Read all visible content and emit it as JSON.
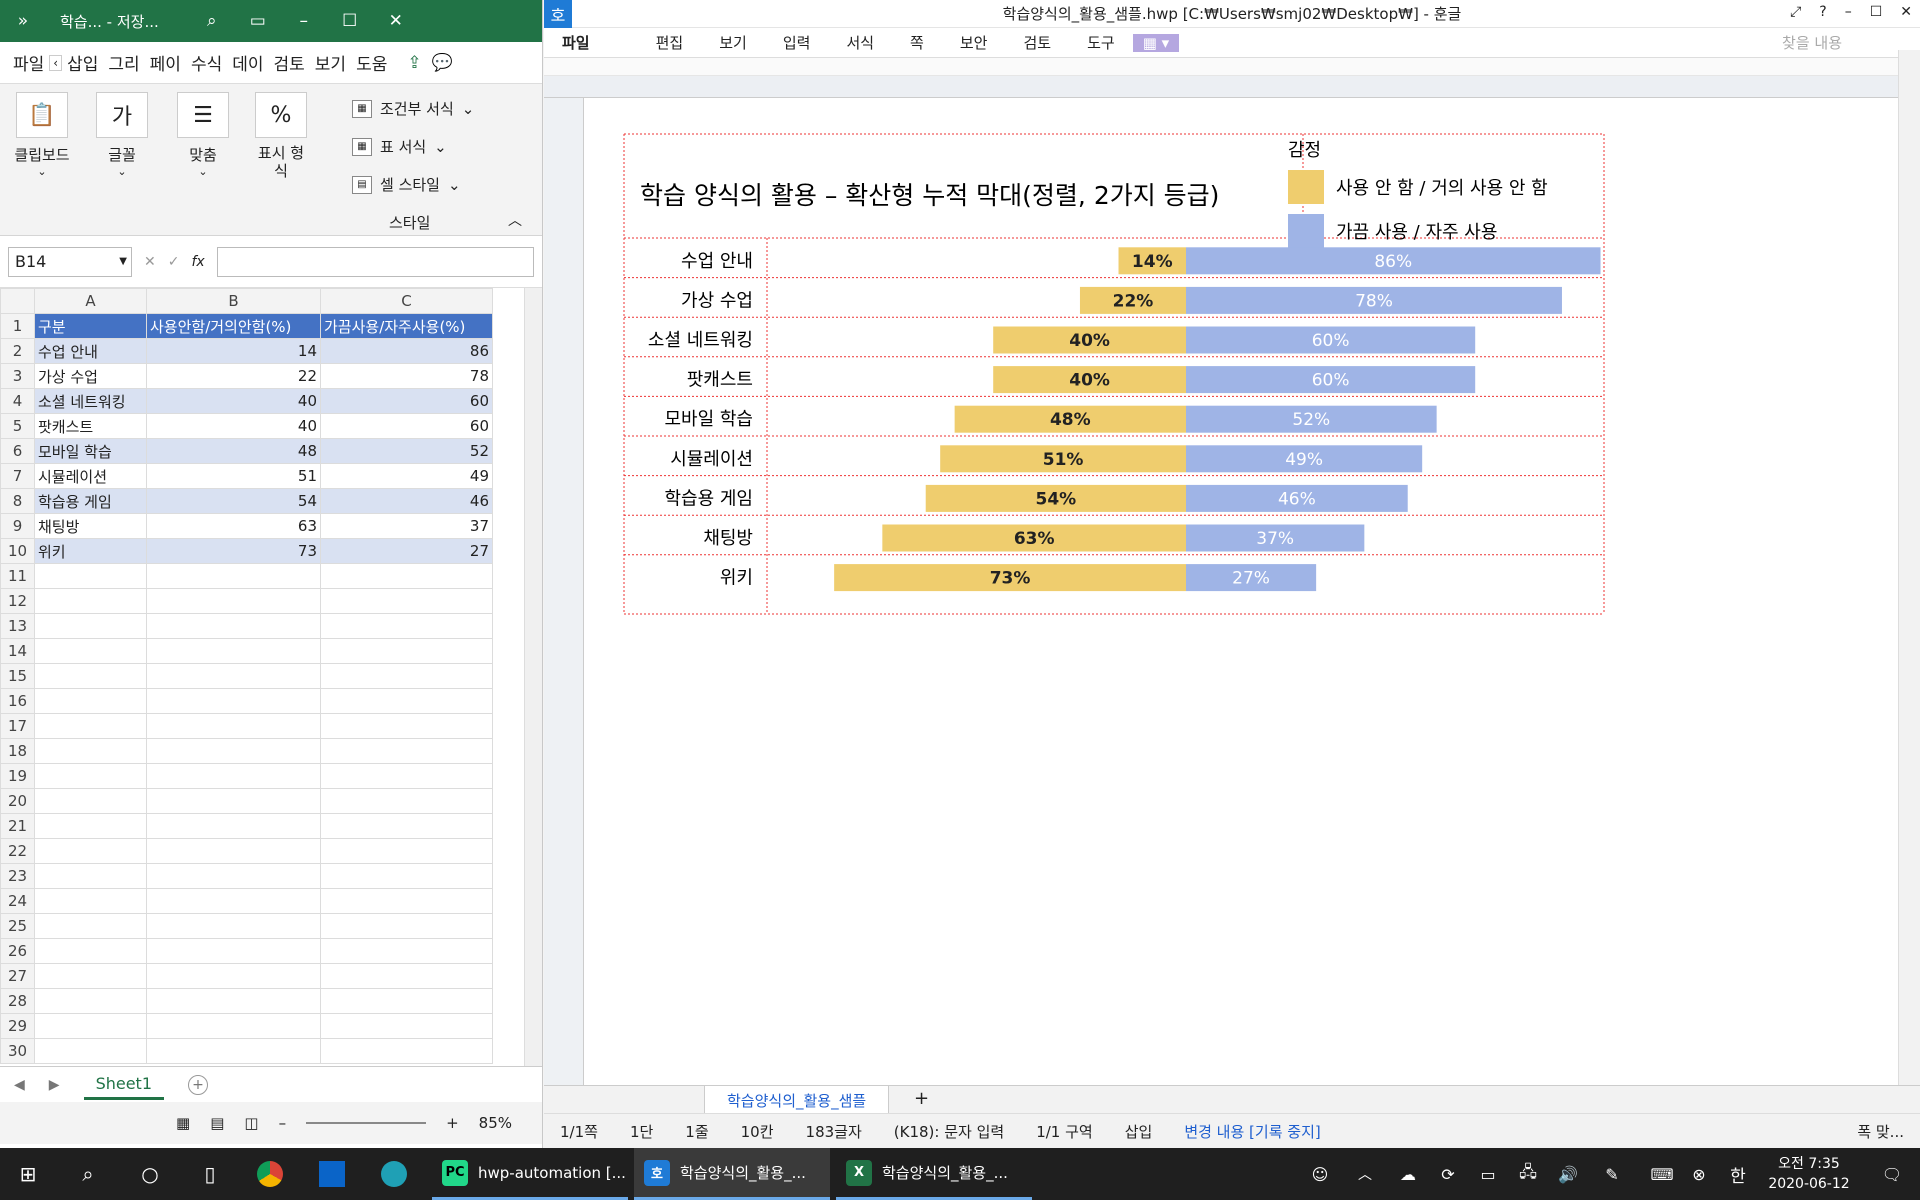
{
  "excel": {
    "title": "학습...  - 저장...",
    "tabs": [
      "파일",
      "삽입",
      "그리",
      "페이",
      "수식",
      "데이",
      "검토",
      "보기",
      "도움"
    ],
    "ribbon": {
      "clipboard": "클립보드",
      "font": "글꼴",
      "font_icon": "가",
      "align": "맞춤",
      "number": "표시 형식",
      "number_icon": "%",
      "conditional": "조건부 서식",
      "table_format": "표 서식",
      "cell_style": "셀 스타일",
      "group_style": "스타일"
    },
    "name_box": "B14",
    "fx_label": "fx",
    "columns": [
      "A",
      "B",
      "C"
    ],
    "headers": [
      "구분",
      "사용안함/거의안함(%)",
      "가끔사용/자주사용(%)"
    ],
    "rows": [
      {
        "a": "수업 안내",
        "b": "14",
        "c": "86"
      },
      {
        "a": "가상 수업",
        "b": "22",
        "c": "78"
      },
      {
        "a": "소셜 네트워킹",
        "b": "40",
        "c": "60"
      },
      {
        "a": "팟캐스트",
        "b": "40",
        "c": "60"
      },
      {
        "a": "모바일 학습",
        "b": "48",
        "c": "52"
      },
      {
        "a": "시뮬레이션",
        "b": "51",
        "c": "49"
      },
      {
        "a": "학습용 게임",
        "b": "54",
        "c": "46"
      },
      {
        "a": "채팅방",
        "b": "63",
        "c": "37"
      },
      {
        "a": "위키",
        "b": "73",
        "c": "27"
      }
    ],
    "row_numbers": [
      "1",
      "2",
      "3",
      "4",
      "5",
      "6",
      "7",
      "8",
      "9",
      "10",
      "11",
      "12",
      "13",
      "14",
      "15",
      "16",
      "17",
      "18",
      "19",
      "20",
      "21",
      "22",
      "23",
      "24",
      "25",
      "26",
      "27",
      "28",
      "29",
      "30"
    ],
    "sheet_tab": "Sheet1",
    "zoom": "85%"
  },
  "hwp": {
    "logo": "호",
    "title": "학습양식의_활용_샘플.hwp [C:₩Users₩smj02₩Desktop₩] - 훈글",
    "menu": [
      "파일",
      "편집",
      "보기",
      "입력",
      "서식",
      "쪽",
      "보안",
      "검토",
      "도구"
    ],
    "search_placeholder": "찾을 내용",
    "doc_tab": "학습양식의_활용_샘플",
    "status": [
      "1/1쪽",
      "1단",
      "1줄",
      "10칸",
      "183글자",
      "(K18): 문자 입력",
      "1/1 구역",
      "삽입"
    ],
    "status_track": "변경 내용 [기록 중지]",
    "fit_label": "폭 맞..."
  },
  "chart_data": {
    "type": "bar",
    "title": "학습 양식의 활용 – 확산형 누적 막대(정렬, 2가지 등급)",
    "legend_title": "감정",
    "categories": [
      "수업 안내",
      "가상 수업",
      "소셜 네트워킹",
      "팟캐스트",
      "모바일 학습",
      "시뮬레이션",
      "학습용 게임",
      "채팅방",
      "위키"
    ],
    "series": [
      {
        "name": "사용 안 함 / 거의 사용 안 함",
        "values": [
          14,
          22,
          40,
          40,
          48,
          51,
          54,
          63,
          73
        ],
        "color": "#efcd6e",
        "labels": [
          "14%",
          "22%",
          "40%",
          "40%",
          "48%",
          "51%",
          "54%",
          "63%",
          "73%"
        ]
      },
      {
        "name": "가끔 사용 / 자주 사용",
        "values": [
          86,
          78,
          60,
          60,
          52,
          49,
          46,
          37,
          27
        ],
        "color": "#9fb4e6",
        "labels": [
          "86%",
          "78%",
          "60%",
          "60%",
          "52%",
          "49%",
          "46%",
          "37%",
          "27%"
        ]
      }
    ],
    "stacking": "diverging",
    "legend_position": "top-right"
  },
  "taskbar": {
    "apps": [
      {
        "label": "hwp-automation [...",
        "icon": "PC"
      },
      {
        "label": "학습양식의_활용_...",
        "icon": "호"
      },
      {
        "label": "학습양식의_활용_...",
        "icon": "X"
      }
    ],
    "time": "오전 7:35",
    "date": "2020-06-12",
    "ime": "한"
  }
}
